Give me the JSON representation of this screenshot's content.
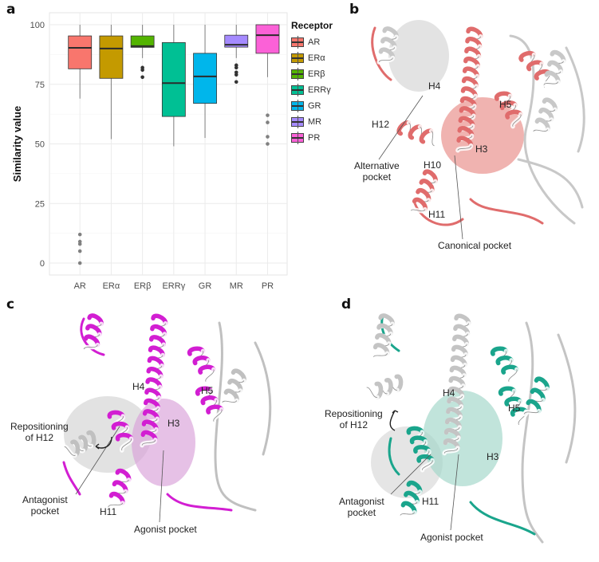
{
  "panels": {
    "a": {
      "letter": "a"
    },
    "b": {
      "letter": "b",
      "labels": {
        "h4": "H4",
        "h5": "H5",
        "h12": "H12",
        "h3": "H3",
        "h10": "H10",
        "h11": "H11",
        "alt_pocket_line1": "Alternative",
        "alt_pocket_line2": "pocket",
        "canonical_pocket": "Canonical pocket"
      },
      "colors": {
        "ribbon": "#e06c6c",
        "ribbon_alt": "#c8c8c8",
        "pocket_main": "#e88a86",
        "pocket_alt": "#d0d0d0"
      }
    },
    "c": {
      "letter": "c",
      "labels": {
        "h4": "H4",
        "h5": "H5",
        "h3": "H3",
        "h11": "H11",
        "repos_line1": "Repositioning",
        "repos_line2": "of H12",
        "antag_line1": "Antagonist",
        "antag_line2": "pocket",
        "agonist_pocket": "Agonist pocket"
      },
      "colors": {
        "ribbon": "#d21ed2",
        "ribbon_alt": "#c0c0c0",
        "pocket_main": "#d9a0d9",
        "pocket_alt": "#cfcfcf"
      }
    },
    "d": {
      "letter": "d",
      "labels": {
        "h4": "H4",
        "h5": "H5",
        "h3": "H3",
        "h11": "H11",
        "repos_line1": "Repositioning",
        "repos_line2": "of H12",
        "antag_line1": "Antagonist",
        "antag_line2": "pocket",
        "agonist_pocket": "Agonist pocket"
      },
      "colors": {
        "ribbon": "#1aa58c",
        "ribbon_alt": "#c4c4c4",
        "pocket_main": "#9fd6c8",
        "pocket_alt": "#d4d4d4"
      }
    }
  },
  "chart_data": {
    "type": "box",
    "title": "",
    "xlabel": "",
    "ylabel": "Similarity value",
    "ylim": [
      -5,
      102
    ],
    "yticks": [
      0,
      25,
      50,
      75,
      100
    ],
    "grid": true,
    "legend": {
      "title": "Receptor",
      "position": "right"
    },
    "categories": [
      "AR",
      "ERα",
      "ERβ",
      "ERRγ",
      "GR",
      "MR",
      "PR"
    ],
    "series": [
      {
        "name": "AR",
        "color": "#f8766d",
        "whisker_low": 69,
        "q1": 81.5,
        "median": 90.3,
        "q3": 95.3,
        "whisker_high": 100,
        "outliers": [
          12,
          9,
          8,
          5,
          0
        ]
      },
      {
        "name": "ERα",
        "color": "#c49a00",
        "whisker_low": 52,
        "q1": 77.5,
        "median": 90,
        "q3": 95.3,
        "whisker_high": 100,
        "outliers": []
      },
      {
        "name": "ERβ",
        "color": "#53b400",
        "whisker_low": 86,
        "q1": 90.5,
        "median": 91,
        "q3": 95.3,
        "whisker_high": 100,
        "outliers": [
          82,
          81,
          78
        ]
      },
      {
        "name": "ERRγ",
        "color": "#00c094",
        "whisker_low": 49,
        "q1": 61.5,
        "median": 75.5,
        "q3": 92.5,
        "whisker_high": 100,
        "outliers": []
      },
      {
        "name": "GR",
        "color": "#00b6eb",
        "whisker_low": 52.5,
        "q1": 67,
        "median": 78.3,
        "q3": 88,
        "whisker_high": 100,
        "outliers": []
      },
      {
        "name": "MR",
        "color": "#a58aff",
        "whisker_low": 86,
        "q1": 90.6,
        "median": 91.6,
        "q3": 95.6,
        "whisker_high": 100,
        "outliers": [
          83,
          82,
          80,
          79,
          76
        ]
      },
      {
        "name": "PR",
        "color": "#fb61d7",
        "whisker_low": 78,
        "q1": 88,
        "median": 95.6,
        "q3": 100,
        "whisker_high": 100,
        "outliers": [
          62,
          59,
          53,
          50
        ]
      }
    ]
  }
}
